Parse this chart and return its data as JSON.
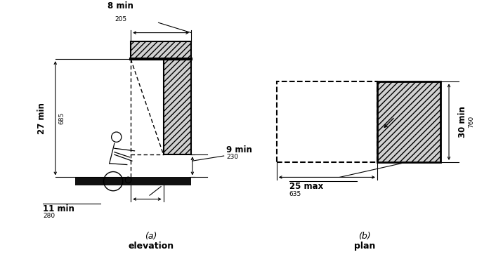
{
  "bg_color": "#ffffff",
  "fig_width": 7.16,
  "fig_height": 3.76,
  "panel_a": {
    "label_a": "(a)",
    "label_b": "elevation",
    "dim_8min": "8 min",
    "dim_8mm": "205",
    "dim_27min": "27 min",
    "dim_27mm": "685",
    "dim_9min": "9 min",
    "dim_9mm": "230",
    "dim_11min": "11 min",
    "dim_11mm": "280"
  },
  "panel_b": {
    "label_a": "(b)",
    "label_b": "plan",
    "dim_25max": "25 max",
    "dim_25mm": "635",
    "dim_30min": "30 min",
    "dim_30mm": "760"
  },
  "hatch_color": "#bbbbbb",
  "line_color": "#000000"
}
